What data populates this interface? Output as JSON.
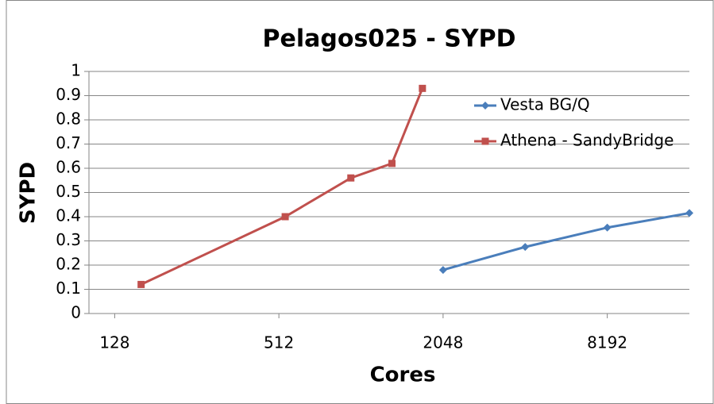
{
  "chart_data": {
    "type": "line",
    "title": "Pelagos025 - SYPD",
    "x_label": "Cores",
    "y_label": "SYPD",
    "log_x": true,
    "grid": true,
    "legend": "upper right",
    "xlim": [
      103,
      16384
    ],
    "xticks": [
      128,
      512,
      2048,
      8192
    ],
    "ylim": [
      0,
      1
    ],
    "yticks": [
      0,
      0.1,
      0.2,
      0.3,
      0.4,
      0.5,
      0.6,
      0.7,
      0.8,
      0.9,
      1
    ],
    "series": [
      {
        "name": "Vesta BG/Q",
        "color": "#4a7ebb",
        "marker": "diamond",
        "x": [
          2048,
          4096,
          8192,
          16384
        ],
        "values": [
          0.18,
          0.275,
          0.355,
          0.415
        ]
      },
      {
        "name": "Athena - SandyBridge",
        "color": "#c0504d",
        "marker": "square",
        "x": [
          160,
          540,
          940,
          1330,
          1720
        ],
        "values": [
          0.12,
          0.4,
          0.56,
          0.62,
          0.93
        ]
      }
    ]
  }
}
